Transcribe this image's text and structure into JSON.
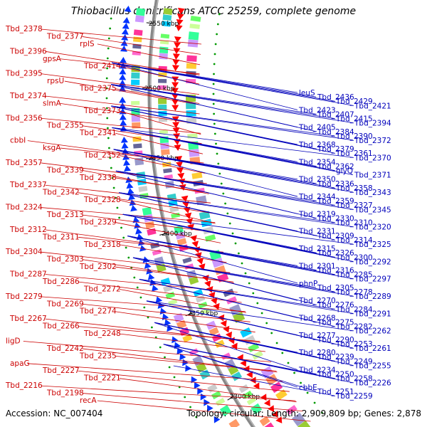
{
  "title": "Thiobacillus denitrificans ATCC 25259, complete genome",
  "footer": {
    "accession": "Accession: NC_007404",
    "topology": "Topology: circular; Length: 2,909,809 bp; Genes: 2,878"
  },
  "colors": {
    "left_label": "#cc0000",
    "right_label": "#0000bb",
    "forward_arrow": "#ff0000",
    "reverse_arrow": "#0033ff",
    "backbone": "#888888"
  },
  "kbp_ticks": [
    "2550 kbp",
    "2500 kbp",
    "2450 kbp",
    "2400 kbp",
    "2350 kbp",
    "2300 kbp"
  ],
  "left_labels": [
    "Tbd_2378",
    "Tbd_2377",
    "rplS",
    "Tbd_2396",
    "gpsA",
    "Tbd_2414",
    "Tbd_2395",
    "rpsU",
    "Tbd_2375",
    "Tbd_2374",
    "slmA",
    "Tbd_2373",
    "Tbd_2356",
    "Tbd_2355",
    "Tbd_2341",
    "cbbI",
    "ksgA",
    "Tbd_2352",
    "Tbd_2357",
    "Tbd_2339",
    "Tbd_2338",
    "Tbd_2337",
    "Tbd_2342",
    "Tbd_2328",
    "Tbd_2324",
    "Tbd_2313",
    "Tbd_2329",
    "Tbd_2312",
    "Tbd_2311",
    "Tbd_2318",
    "Tbd_2304",
    "Tbd_2303",
    "Tbd_2302",
    "Tbd_2287",
    "Tbd_2286",
    "Tbd_2272",
    "Tbd_2279",
    "Tbd_2269",
    "Tbd_2274",
    "Tbd_2267",
    "Tbd_2266",
    "Tbd_2248",
    "ligD",
    "Tbd_2242",
    "Tbd_2235",
    "apaG",
    "Tbd_2227",
    "Tbd_2221",
    "Tbd_2216",
    "Tbd_2198",
    "recA"
  ],
  "right_labels": [
    "leuS",
    "Tbd_2436",
    "Tbd_2429",
    "Tbd_2421",
    "Tbd_2423",
    "Tbd_2407",
    "Tbd_2415",
    "Tbd_2394",
    "Tbd_2405",
    "Tbd_2384",
    "Tbd_2390",
    "Tbd_2372",
    "Tbd_2368",
    "Tbd_2379",
    "Tbd_2361",
    "Tbd_2370",
    "Tbd_2354",
    "Tbd_2362",
    "glyQ",
    "Tbd_2371",
    "Tbd_2350",
    "Tbd_2336",
    "Tbd_2358",
    "Tbd_2343",
    "Tbd_2344",
    "Tbd_2359",
    "Tbd_2327",
    "Tbd_2345",
    "Tbd_2319",
    "Tbd_2330",
    "Tbd_2310",
    "Tbd_2320",
    "Tbd_2331",
    "Tbd_2309",
    "Tbd_2314",
    "Tbd_2325",
    "Tbd_2315",
    "Tbd_2326",
    "Tbd_2300",
    "Tbd_2292",
    "Tbd_2301",
    "Tbd_2316",
    "Tbd_2285",
    "Tbd_2297",
    "phnP",
    "Tbd_2305",
    "Tbd_2278",
    "Tbd_2289",
    "Tbd_2270",
    "Tbd_2276",
    "Tbd_2284",
    "Tbd_2291",
    "Tbd_2268",
    "Tbd_2275",
    "Tbd_2282",
    "Tbd_2262",
    "Tbd_2277",
    "Tbd_2290",
    "Tbd_2253",
    "Tbd_2261",
    "Tbd_2280",
    "Tbd_2239",
    "Tbd_2249",
    "Tbd_2255",
    "Tbd_2234",
    "Tbd_2250",
    "Tbd_2258",
    "Tbd_2226",
    "cbbE",
    "Tbd_2251",
    "Tbd_2259"
  ]
}
